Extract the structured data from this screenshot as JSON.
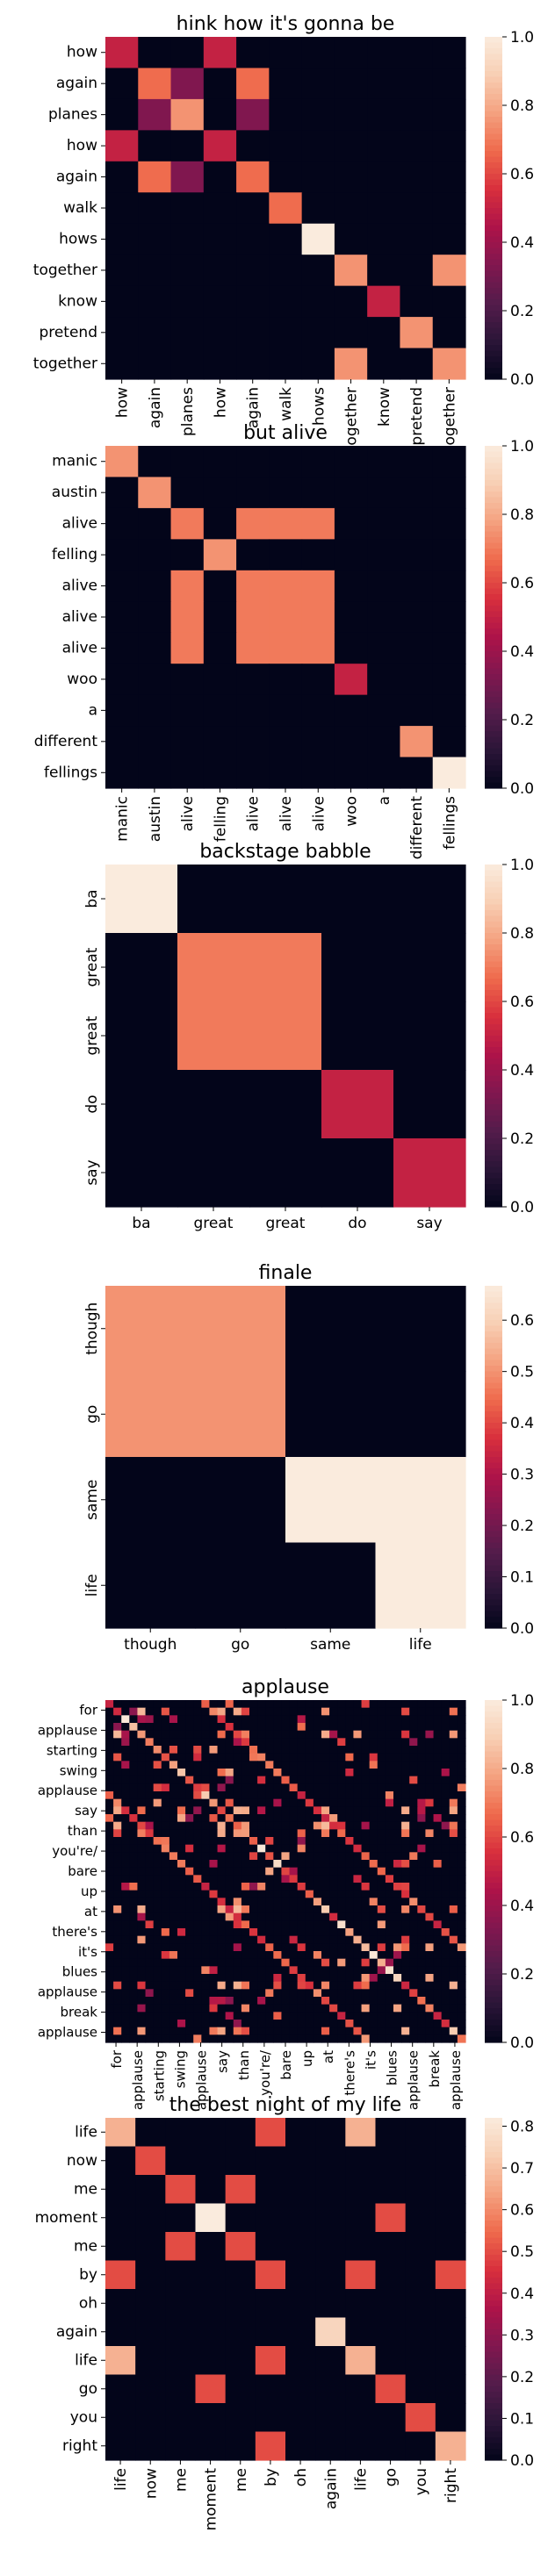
{
  "figure": {
    "colormap": "rocket"
  },
  "chart_data": [
    {
      "type": "heatmap",
      "title": "hink how it's gonna be",
      "row_labels": [
        "how",
        "again",
        "planes",
        "how",
        "again",
        "walk",
        "hows",
        "together",
        "know",
        "pretend",
        "together"
      ],
      "col_labels": [
        "how",
        "again",
        "planes",
        "how",
        "again",
        "walk",
        "hows",
        "together",
        "know",
        "pretend",
        "together"
      ],
      "colorbar_ticks": [
        "0.0",
        "0.2",
        "0.4",
        "0.6",
        "0.8",
        "1.0"
      ],
      "vmin": 0,
      "vmax": 1,
      "values": [
        [
          0.5,
          0,
          0,
          0.5,
          0,
          0,
          0,
          0,
          0,
          0,
          0
        ],
        [
          0,
          0.67,
          0.33,
          0,
          0.67,
          0,
          0,
          0,
          0,
          0,
          0
        ],
        [
          0,
          0.33,
          0.75,
          0,
          0.33,
          0,
          0,
          0,
          0,
          0,
          0
        ],
        [
          0.5,
          0,
          0,
          0.5,
          0,
          0,
          0,
          0,
          0,
          0,
          0
        ],
        [
          0,
          0.67,
          0.33,
          0,
          0.67,
          0,
          0,
          0,
          0,
          0,
          0
        ],
        [
          0,
          0,
          0,
          0,
          0,
          0.67,
          0,
          0,
          0,
          0,
          0
        ],
        [
          0,
          0,
          0,
          0,
          0,
          0,
          1,
          0,
          0,
          0,
          0
        ],
        [
          0,
          0,
          0,
          0,
          0,
          0,
          0,
          0.75,
          0,
          0,
          0.75
        ],
        [
          0,
          0,
          0,
          0,
          0,
          0,
          0,
          0,
          0.5,
          0,
          0
        ],
        [
          0,
          0,
          0,
          0,
          0,
          0,
          0,
          0,
          0,
          0.75,
          0
        ],
        [
          0,
          0,
          0,
          0,
          0,
          0,
          0,
          0.75,
          0,
          0,
          0.75
        ]
      ]
    },
    {
      "type": "heatmap",
      "title": "but alive",
      "row_labels": [
        "manic",
        "austin",
        "alive",
        "felling",
        "alive",
        "alive",
        "alive",
        "woo",
        "a",
        "different",
        "fellings"
      ],
      "col_labels": [
        "manic",
        "austin",
        "alive",
        "felling",
        "alive",
        "alive",
        "alive",
        "woo",
        "a",
        "different",
        "fellings"
      ],
      "colorbar_ticks": [
        "0.0",
        "0.2",
        "0.4",
        "0.6",
        "0.8",
        "1.0"
      ],
      "vmin": 0,
      "vmax": 1,
      "values": [
        [
          0.75,
          0,
          0,
          0,
          0,
          0,
          0,
          0,
          0,
          0,
          0
        ],
        [
          0,
          0.75,
          0,
          0,
          0,
          0,
          0,
          0,
          0,
          0,
          0
        ],
        [
          0,
          0,
          0.7,
          0,
          0.7,
          0.7,
          0.7,
          0,
          0,
          0,
          0
        ],
        [
          0,
          0,
          0,
          0.75,
          0,
          0,
          0,
          0,
          0,
          0,
          0
        ],
        [
          0,
          0,
          0.7,
          0,
          0.7,
          0.7,
          0.7,
          0,
          0,
          0,
          0
        ],
        [
          0,
          0,
          0.7,
          0,
          0.7,
          0.7,
          0.7,
          0,
          0,
          0,
          0
        ],
        [
          0,
          0,
          0.7,
          0,
          0.7,
          0.7,
          0.7,
          0,
          0,
          0,
          0
        ],
        [
          0,
          0,
          0,
          0,
          0,
          0,
          0,
          0.5,
          0,
          0,
          0
        ],
        [
          0,
          0,
          0,
          0,
          0,
          0,
          0,
          0,
          0,
          0,
          0
        ],
        [
          0,
          0,
          0,
          0,
          0,
          0,
          0,
          0,
          0,
          0.75,
          0
        ],
        [
          0,
          0,
          0,
          0,
          0,
          0,
          0,
          0,
          0,
          0,
          1
        ]
      ]
    },
    {
      "type": "heatmap",
      "title": "backstage babble",
      "row_labels": [
        "ba",
        "great",
        "great",
        "do",
        "say"
      ],
      "col_labels": [
        "ba",
        "great",
        "great",
        "do",
        "say"
      ],
      "colorbar_ticks": [
        "0.0",
        "0.2",
        "0.4",
        "0.6",
        "0.8",
        "1.0"
      ],
      "vmin": 0,
      "vmax": 1,
      "values": [
        [
          1,
          0,
          0,
          0,
          0
        ],
        [
          0,
          0.7,
          0.7,
          0,
          0
        ],
        [
          0,
          0.7,
          0.7,
          0,
          0
        ],
        [
          0,
          0,
          0,
          0.5,
          0
        ],
        [
          0,
          0,
          0,
          0,
          0.5
        ]
      ]
    },
    {
      "type": "heatmap",
      "title": "finale",
      "row_labels": [
        "though",
        "go",
        "same",
        "life"
      ],
      "col_labels": [
        "though",
        "go",
        "same",
        "life"
      ],
      "colorbar_ticks": [
        "0.0",
        "0.1",
        "0.2",
        "0.3",
        "0.4",
        "0.5",
        "0.6"
      ],
      "vmin": 0,
      "vmax": 0.667,
      "values": [
        [
          0.5,
          0.5,
          0,
          0
        ],
        [
          0.5,
          0.5,
          0,
          0
        ],
        [
          0,
          0,
          0.667,
          0.667
        ],
        [
          0,
          0,
          0,
          0.667
        ]
      ]
    },
    {
      "type": "heatmap",
      "title": "applause",
      "row_labels": [
        "for",
        "applause",
        "starting",
        "swing",
        "applause",
        "say",
        "than",
        "you're/",
        "bare",
        "up",
        "at",
        "there's",
        "it's",
        "blues",
        "applause",
        "break",
        "applause"
      ],
      "col_labels": [
        "for",
        "applause",
        "starting",
        "swing",
        "applause",
        "say",
        "than",
        "you're/",
        "bare",
        "up",
        "at",
        "there's",
        "it's",
        "blues",
        "applause",
        "break",
        "applause"
      ],
      "colorbar_ticks": [
        "0.0",
        "0.2",
        "0.4",
        "0.6",
        "0.8",
        "1.0"
      ],
      "vmin": 0,
      "vmax": 1,
      "size": 45,
      "band_rows": [
        1,
        4,
        14,
        16,
        17,
        27,
        37,
        43
      ],
      "band_cols": [
        1,
        4,
        14,
        16,
        17,
        27,
        37,
        43
      ]
    },
    {
      "type": "heatmap",
      "title": "the best night of my life",
      "row_labels": [
        "life",
        "now",
        "me",
        "moment",
        "me",
        "by",
        "oh",
        "again",
        "life",
        "go",
        "you",
        "right"
      ],
      "col_labels": [
        "life",
        "now",
        "me",
        "moment",
        "me",
        "by",
        "oh",
        "again",
        "life",
        "go",
        "you",
        "right"
      ],
      "colorbar_ticks": [
        "0.0",
        "0.1",
        "0.2",
        "0.3",
        "0.4",
        "0.5",
        "0.6",
        "0.7",
        "0.8"
      ],
      "vmin": 0,
      "vmax": 0.82,
      "values": [
        [
          0.67,
          0,
          0,
          0,
          0,
          0.5,
          0,
          0,
          0.67,
          0,
          0,
          0
        ],
        [
          0,
          0.5,
          0,
          0,
          0,
          0,
          0,
          0,
          0,
          0,
          0,
          0
        ],
        [
          0,
          0,
          0.5,
          0,
          0.5,
          0,
          0,
          0,
          0,
          0,
          0,
          0
        ],
        [
          0,
          0,
          0,
          0.82,
          0,
          0,
          0,
          0,
          0,
          0.5,
          0,
          0
        ],
        [
          0,
          0,
          0.5,
          0,
          0.5,
          0,
          0,
          0,
          0,
          0,
          0,
          0
        ],
        [
          0.5,
          0,
          0,
          0,
          0,
          0.5,
          0,
          0,
          0.5,
          0,
          0,
          0.5
        ],
        [
          0,
          0,
          0,
          0,
          0,
          0,
          0,
          0,
          0,
          0,
          0,
          0
        ],
        [
          0,
          0,
          0,
          0,
          0,
          0,
          0,
          0.75,
          0,
          0,
          0,
          0
        ],
        [
          0.67,
          0,
          0,
          0,
          0,
          0.5,
          0,
          0,
          0.67,
          0,
          0,
          0
        ],
        [
          0,
          0,
          0,
          0.5,
          0,
          0,
          0,
          0,
          0,
          0.5,
          0,
          0
        ],
        [
          0,
          0,
          0,
          0,
          0,
          0,
          0,
          0,
          0,
          0,
          0.5,
          0
        ],
        [
          0,
          0,
          0,
          0,
          0,
          0.5,
          0,
          0,
          0,
          0,
          0,
          0.67
        ]
      ]
    }
  ]
}
